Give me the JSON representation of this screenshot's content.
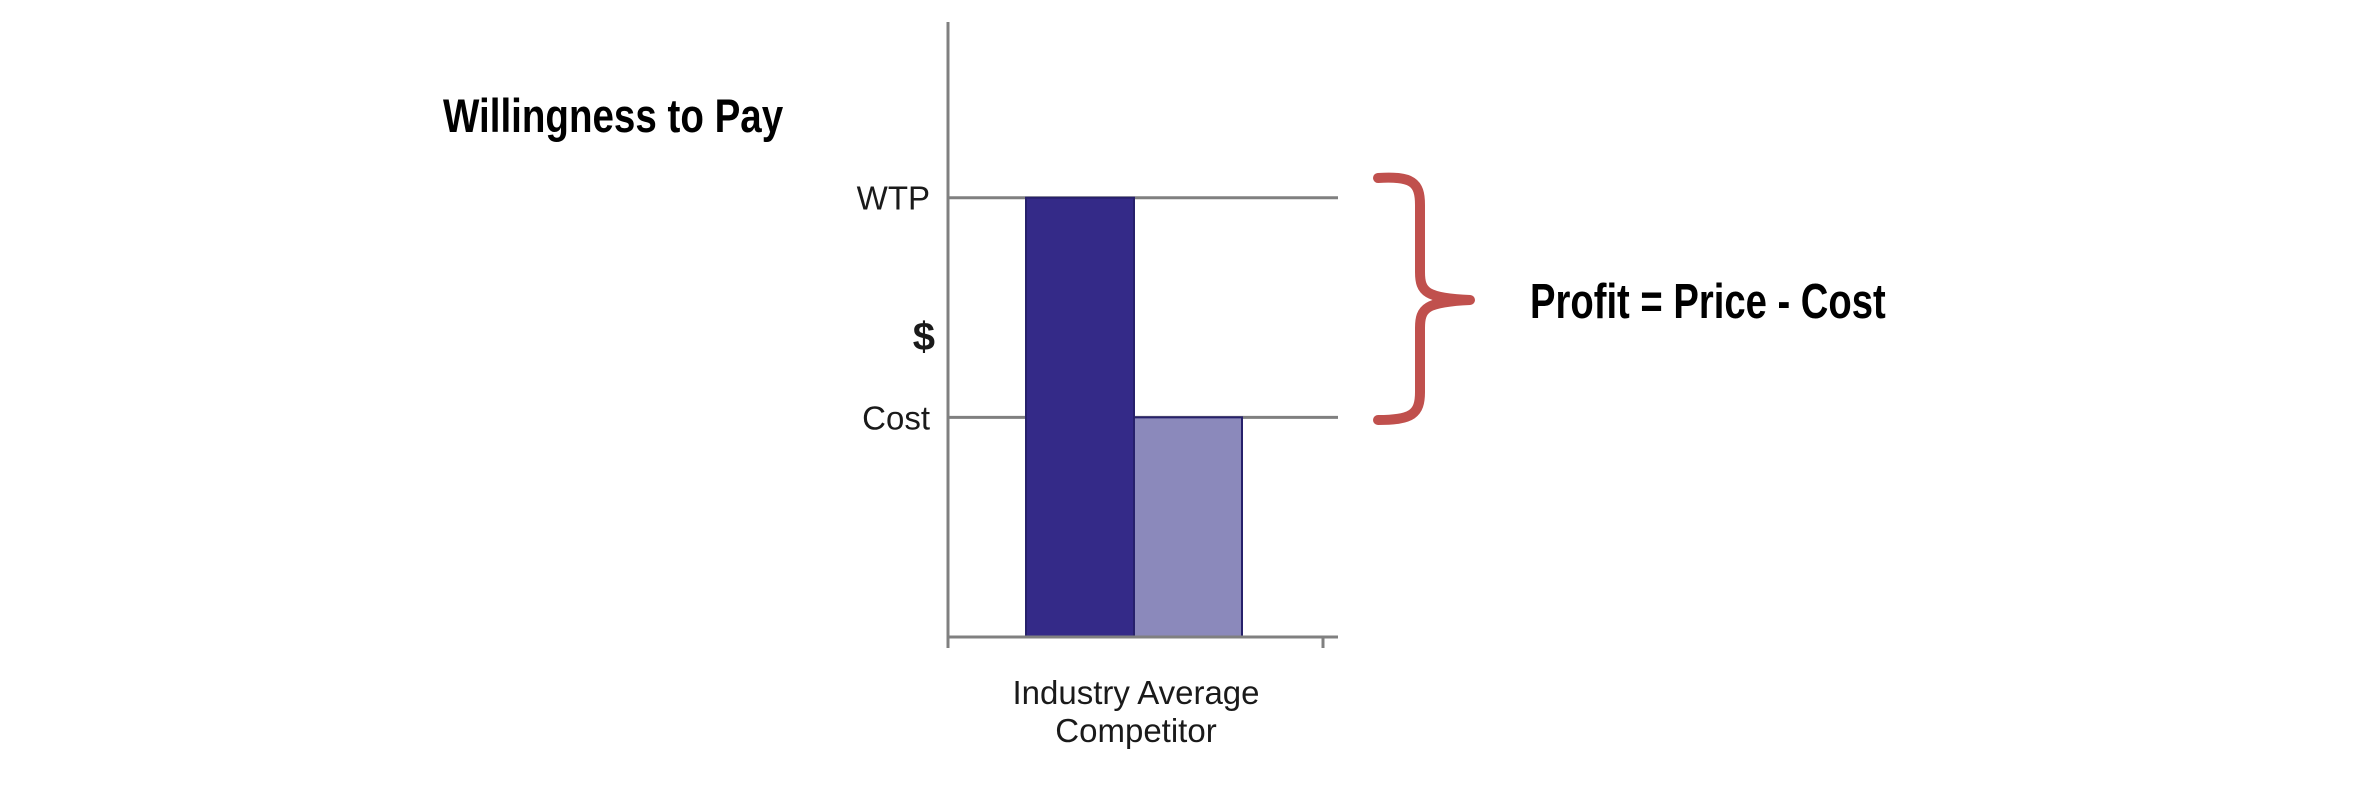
{
  "heading": "Willingness to Pay",
  "annotation": "Profit = Price - Cost",
  "colors": {
    "wtp_bar": "#342a88",
    "cost_bar": "#8b89bb",
    "brace": "#c0504d",
    "axis": "#808080"
  },
  "chart_data": {
    "type": "bar",
    "categories": [
      "Industry Average Competitor"
    ],
    "category_lines": [
      "Industry Average",
      "Competitor"
    ],
    "series": [
      {
        "values": [
          2
        ]
      },
      {
        "values": [
          1
        ]
      }
    ],
    "ylabel": "$",
    "ytick_labels": [
      {
        "label": "WTP",
        "value": 2
      },
      {
        "label": "Cost",
        "value": 1
      }
    ],
    "ylim": [
      0,
      2.8
    ],
    "grid": "horizontal lines at WTP and Cost"
  }
}
